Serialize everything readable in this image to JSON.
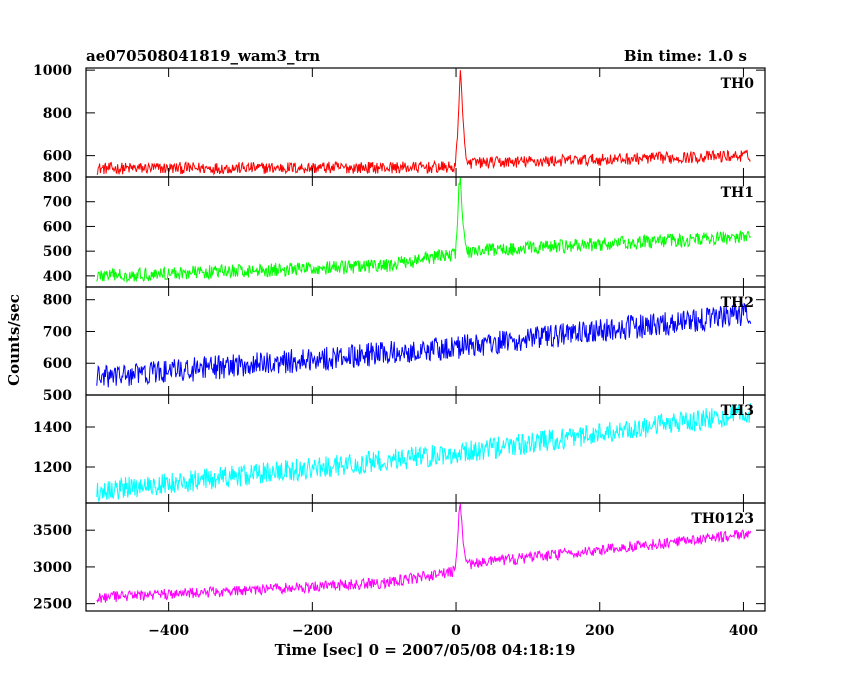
{
  "header": {
    "title": "ae070508041819_wam3_trn",
    "bin_time": "Bin time: 1.0 s"
  },
  "chart_data": {
    "type": "line",
    "title": "ae070508041819_wam3_trn",
    "subtitle": "Bin time: 1.0 s",
    "xlabel": "Time [sec] 0 = 2007/05/08 04:18:19",
    "ylabel": "Counts/sec",
    "xlim": [
      -515,
      430
    ],
    "x_ticks": [
      -400,
      -200,
      0,
      200,
      400
    ],
    "x_tick_labels": [
      "−400",
      "−200",
      "0",
      "200",
      "400"
    ],
    "sampling": {
      "x_start": -500,
      "x_end": 410,
      "step": 1
    },
    "panels": [
      {
        "name": "TH0",
        "color": "#ff0000",
        "ylim": [
          500,
          1010
        ],
        "ticks": [
          600,
          800,
          1000
        ],
        "tick_labels": [
          "600",
          "800",
          "1000"
        ],
        "baseline": [
          [
            -500,
            540
          ],
          [
            0,
            545
          ],
          [
            20,
            565
          ],
          [
            410,
            600
          ]
        ],
        "noise_amplitude": 28,
        "burst": {
          "x": [
            0,
            2,
            4,
            6,
            8,
            10,
            12,
            14,
            16
          ],
          "y": [
            600,
            700,
            820,
            1010,
            880,
            760,
            650,
            590,
            560
          ]
        }
      },
      {
        "name": "TH1",
        "color": "#00ff00",
        "ylim": [
          355,
          800
        ],
        "ticks": [
          400,
          500,
          600,
          700,
          800
        ],
        "tick_labels": [
          "400",
          "500",
          "600",
          "700",
          "800"
        ],
        "baseline": [
          [
            -500,
            400
          ],
          [
            -100,
            440
          ],
          [
            0,
            490
          ],
          [
            20,
            500
          ],
          [
            410,
            560
          ]
        ],
        "noise_amplitude": 28,
        "burst": {
          "x": [
            0,
            2,
            4,
            6,
            8,
            10,
            12,
            14,
            16
          ],
          "y": [
            540,
            600,
            760,
            800,
            680,
            600,
            560,
            520,
            500
          ]
        }
      },
      {
        "name": "TH2",
        "color": "#0000ff",
        "ylim": [
          500,
          840
        ],
        "ticks": [
          500,
          600,
          700,
          800
        ],
        "tick_labels": [
          "500",
          "600",
          "700",
          "800"
        ],
        "baseline": [
          [
            -500,
            555
          ],
          [
            0,
            650
          ],
          [
            410,
            755
          ]
        ],
        "noise_amplitude": 38,
        "burst": null
      },
      {
        "name": "TH3",
        "color": "#00ffff",
        "ylim": [
          1020,
          1560
        ],
        "ticks": [
          1200,
          1400
        ],
        "tick_labels": [
          "1200",
          "1400"
        ],
        "baseline": [
          [
            -500,
            1080
          ],
          [
            0,
            1270
          ],
          [
            410,
            1470
          ]
        ],
        "noise_amplitude": 55,
        "burst": null
      },
      {
        "name": "TH0123",
        "color": "#ff00ff",
        "ylim": [
          2400,
          3870
        ],
        "ticks": [
          2500,
          3000,
          3500
        ],
        "tick_labels": [
          "2500",
          "3000",
          "3500"
        ],
        "baseline": [
          [
            -500,
            2580
          ],
          [
            -100,
            2780
          ],
          [
            0,
            2940
          ],
          [
            20,
            3040
          ],
          [
            410,
            3450
          ]
        ],
        "noise_amplitude": 75,
        "burst": {
          "x": [
            0,
            2,
            4,
            6,
            8,
            10,
            12,
            14,
            16
          ],
          "y": [
            3100,
            3350,
            3700,
            3870,
            3600,
            3350,
            3200,
            3100,
            3050
          ]
        }
      }
    ],
    "grid": false,
    "legend": "none"
  }
}
